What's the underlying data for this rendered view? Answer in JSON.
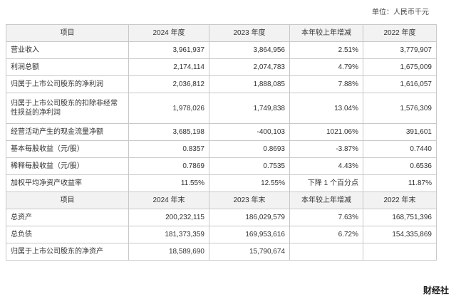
{
  "unit_label": "单位：人民币千元",
  "section1": {
    "headers": [
      "项目",
      "2024 年度",
      "2023 年度",
      "本年较上年增减",
      "2022 年度"
    ],
    "rows": [
      [
        "营业收入",
        "3,961,937",
        "3,864,956",
        "2.51%",
        "3,779,907"
      ],
      [
        "利润总额",
        "2,174,114",
        "2,074,783",
        "4.79%",
        "1,675,009"
      ],
      [
        "归属于上市公司股东的净利润",
        "2,036,812",
        "1,888,085",
        "7.88%",
        "1,616,057"
      ],
      [
        "归属于上市公司股东的扣除非经常性损益的净利润",
        "1,978,026",
        "1,749,838",
        "13.04%",
        "1,576,309"
      ],
      [
        "经营活动产生的现金流量净额",
        "3,685,198",
        "-400,103",
        "1021.06%",
        "391,601"
      ],
      [
        "基本每股收益（元/股）",
        "0.8357",
        "0.8693",
        "-3.87%",
        "0.7440"
      ],
      [
        "稀释每股收益（元/股）",
        "0.7869",
        "0.7535",
        "4.43%",
        "0.6536"
      ],
      [
        "加权平均净资产收益率",
        "11.55%",
        "12.55%",
        "下降 1 个百分点",
        "11.87%"
      ]
    ]
  },
  "section2": {
    "headers": [
      "项目",
      "2024 年末",
      "2023 年末",
      "本年较上年增减",
      "2022 年末"
    ],
    "rows": [
      [
        "总资产",
        "200,232,115",
        "186,029,579",
        "7.63%",
        "168,751,396"
      ],
      [
        "总负债",
        "181,373,359",
        "169,953,616",
        "6.72%",
        "154,335,869"
      ],
      [
        "归属于上市公司股东的净资产",
        "18,589,690",
        "15,790,674",
        "",
        ""
      ]
    ]
  },
  "watermark": "财经社"
}
